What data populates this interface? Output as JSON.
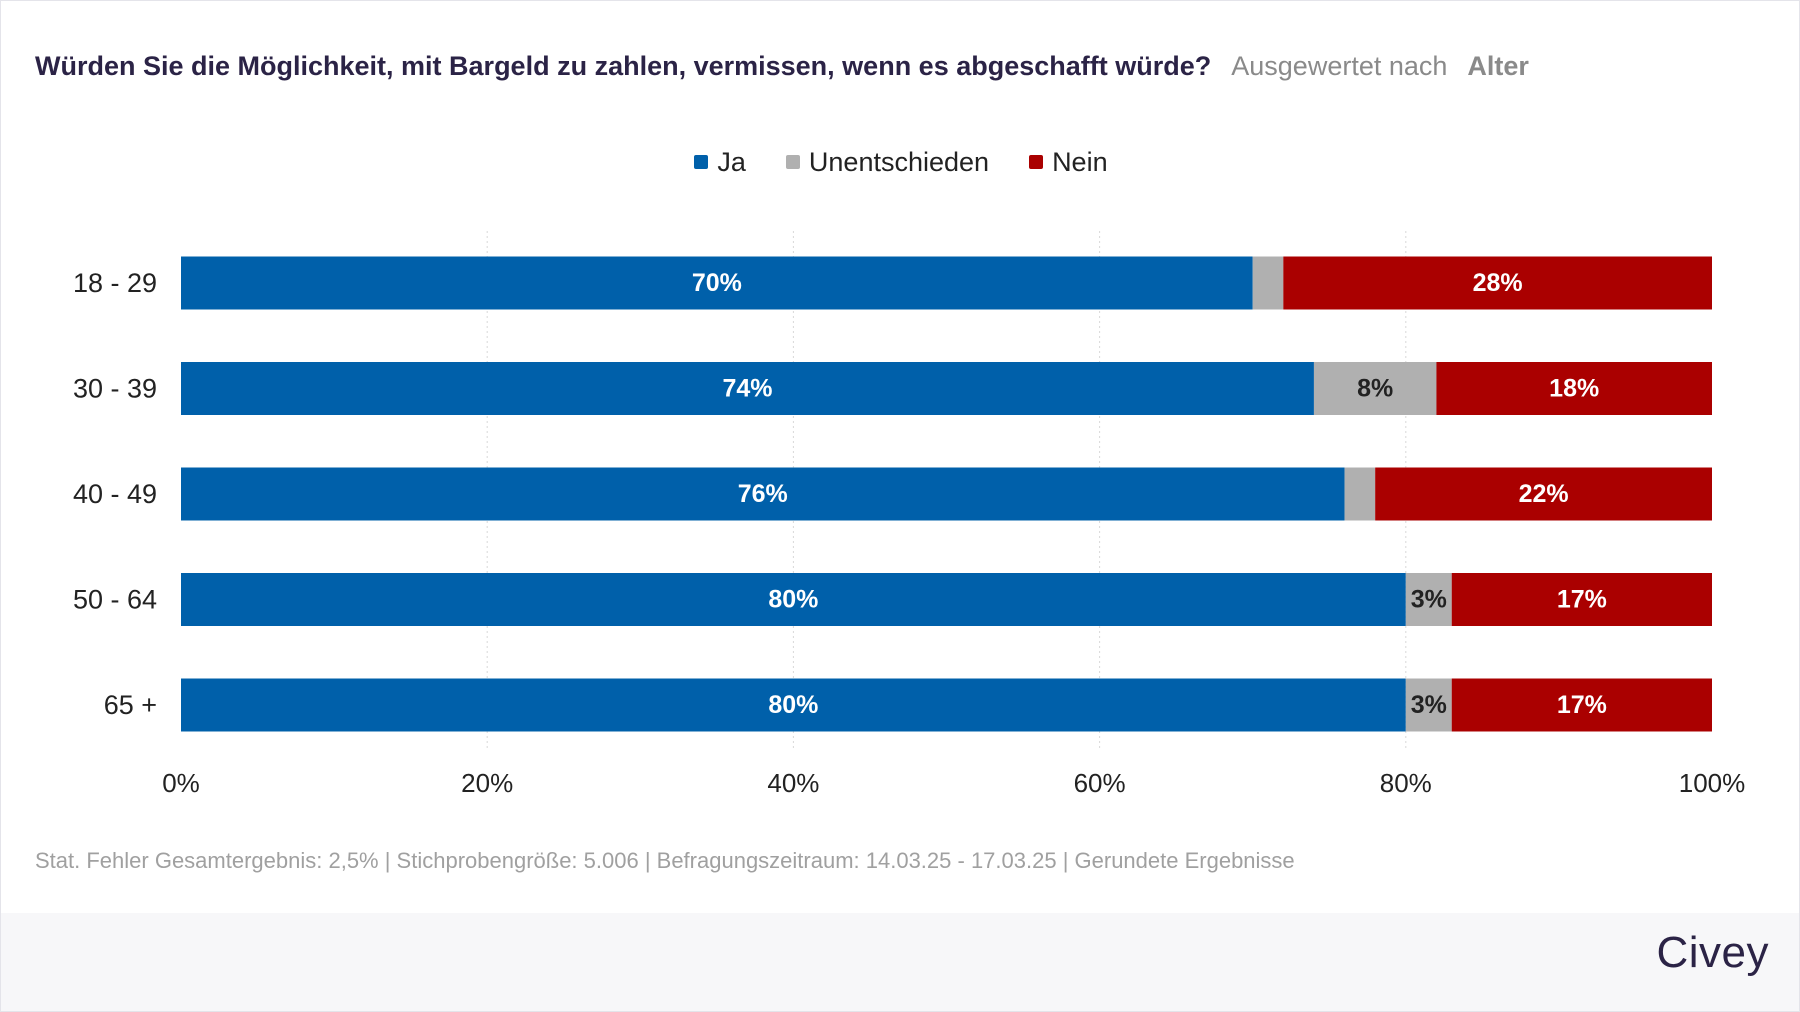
{
  "header": {
    "title": "Würden Sie die Möglichkeit, mit Bargeld zu zahlen, vermissen, wenn es abgeschafft würde?",
    "subtitle_prefix": "Ausgewertet nach",
    "subtitle_dimension": "Alter"
  },
  "footnote": "Stat. Fehler Gesamtergebnis: 2,5% | Stichprobengröße: 5.006 | Befragungszeitraum: 14.03.25 - 17.03.25 | Gerundete Ergebnisse",
  "brand": "Civey",
  "chart_data": {
    "type": "bar",
    "orientation": "horizontal",
    "stacked": true,
    "categories": [
      "18 - 29",
      "30 - 39",
      "40 - 49",
      "50 - 64",
      "65 +"
    ],
    "series": [
      {
        "name": "Ja",
        "color": "#0060aa",
        "values": [
          70,
          74,
          76,
          80,
          80
        ],
        "labels": [
          "70%",
          "74%",
          "76%",
          "80%",
          "80%"
        ]
      },
      {
        "name": "Unentschieden",
        "color": "#b0b0b0",
        "values": [
          2,
          8,
          2,
          3,
          3
        ],
        "labels": [
          "",
          "8%",
          "",
          "3%",
          "3%"
        ]
      },
      {
        "name": "Nein",
        "color": "#aa0000",
        "values": [
          28,
          18,
          22,
          17,
          17
        ],
        "labels": [
          "28%",
          "18%",
          "22%",
          "17%",
          "17%"
        ]
      }
    ],
    "xlim": [
      0,
      100
    ],
    "xticks": [
      0,
      20,
      40,
      60,
      80,
      100
    ],
    "xtick_labels": [
      "0%",
      "20%",
      "40%",
      "60%",
      "80%",
      "100%"
    ],
    "grid": true,
    "legend_position": "top-center"
  }
}
